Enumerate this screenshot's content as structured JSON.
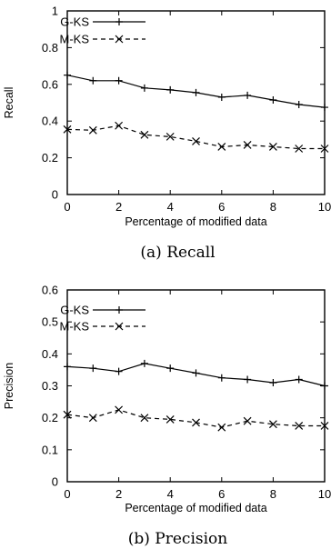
{
  "chart_data": [
    {
      "type": "line",
      "caption": "(a) Recall",
      "xlabel": "Percentage of modified data",
      "ylabel": "Recall",
      "xlim": [
        0,
        10
      ],
      "ylim": [
        0,
        1
      ],
      "xticks": [
        0,
        2,
        4,
        6,
        8,
        10
      ],
      "yticks": [
        0,
        0.2,
        0.4,
        0.6,
        0.8,
        1
      ],
      "ytick_labels": [
        "0",
        "0.2",
        "0.4",
        "0.6",
        "0.8",
        "1"
      ],
      "legend_position": "top-left",
      "grid": false,
      "x": [
        0,
        1,
        2,
        3,
        4,
        5,
        6,
        7,
        8,
        9,
        10
      ],
      "series": [
        {
          "name": "G-KS",
          "style": "solid",
          "marker": "plus",
          "values": [
            0.65,
            0.62,
            0.62,
            0.58,
            0.57,
            0.555,
            0.53,
            0.54,
            0.515,
            0.49,
            0.475
          ]
        },
        {
          "name": "M-KS",
          "style": "dashed",
          "marker": "cross",
          "values": [
            0.355,
            0.35,
            0.375,
            0.325,
            0.315,
            0.29,
            0.26,
            0.27,
            0.26,
            0.25,
            0.25
          ]
        }
      ]
    },
    {
      "type": "line",
      "caption": "(b) Precision",
      "xlabel": "Percentage of modified data",
      "ylabel": "Precision",
      "xlim": [
        0,
        10
      ],
      "ylim": [
        0,
        0.6
      ],
      "xticks": [
        0,
        2,
        4,
        6,
        8,
        10
      ],
      "yticks": [
        0,
        0.1,
        0.2,
        0.3,
        0.4,
        0.5,
        0.6
      ],
      "ytick_labels": [
        "0",
        "0.1",
        "0.2",
        "0.3",
        "0.4",
        "0.5",
        "0.6"
      ],
      "legend_position": "top-left",
      "grid": false,
      "x": [
        0,
        1,
        2,
        3,
        4,
        5,
        6,
        7,
        8,
        9,
        10
      ],
      "series": [
        {
          "name": "G-KS",
          "style": "solid",
          "marker": "plus",
          "values": [
            0.36,
            0.355,
            0.345,
            0.37,
            0.355,
            0.34,
            0.325,
            0.32,
            0.31,
            0.32,
            0.3
          ]
        },
        {
          "name": "M-KS",
          "style": "dashed",
          "marker": "cross",
          "values": [
            0.21,
            0.2,
            0.225,
            0.2,
            0.195,
            0.185,
            0.17,
            0.19,
            0.18,
            0.175,
            0.175
          ]
        }
      ]
    }
  ]
}
